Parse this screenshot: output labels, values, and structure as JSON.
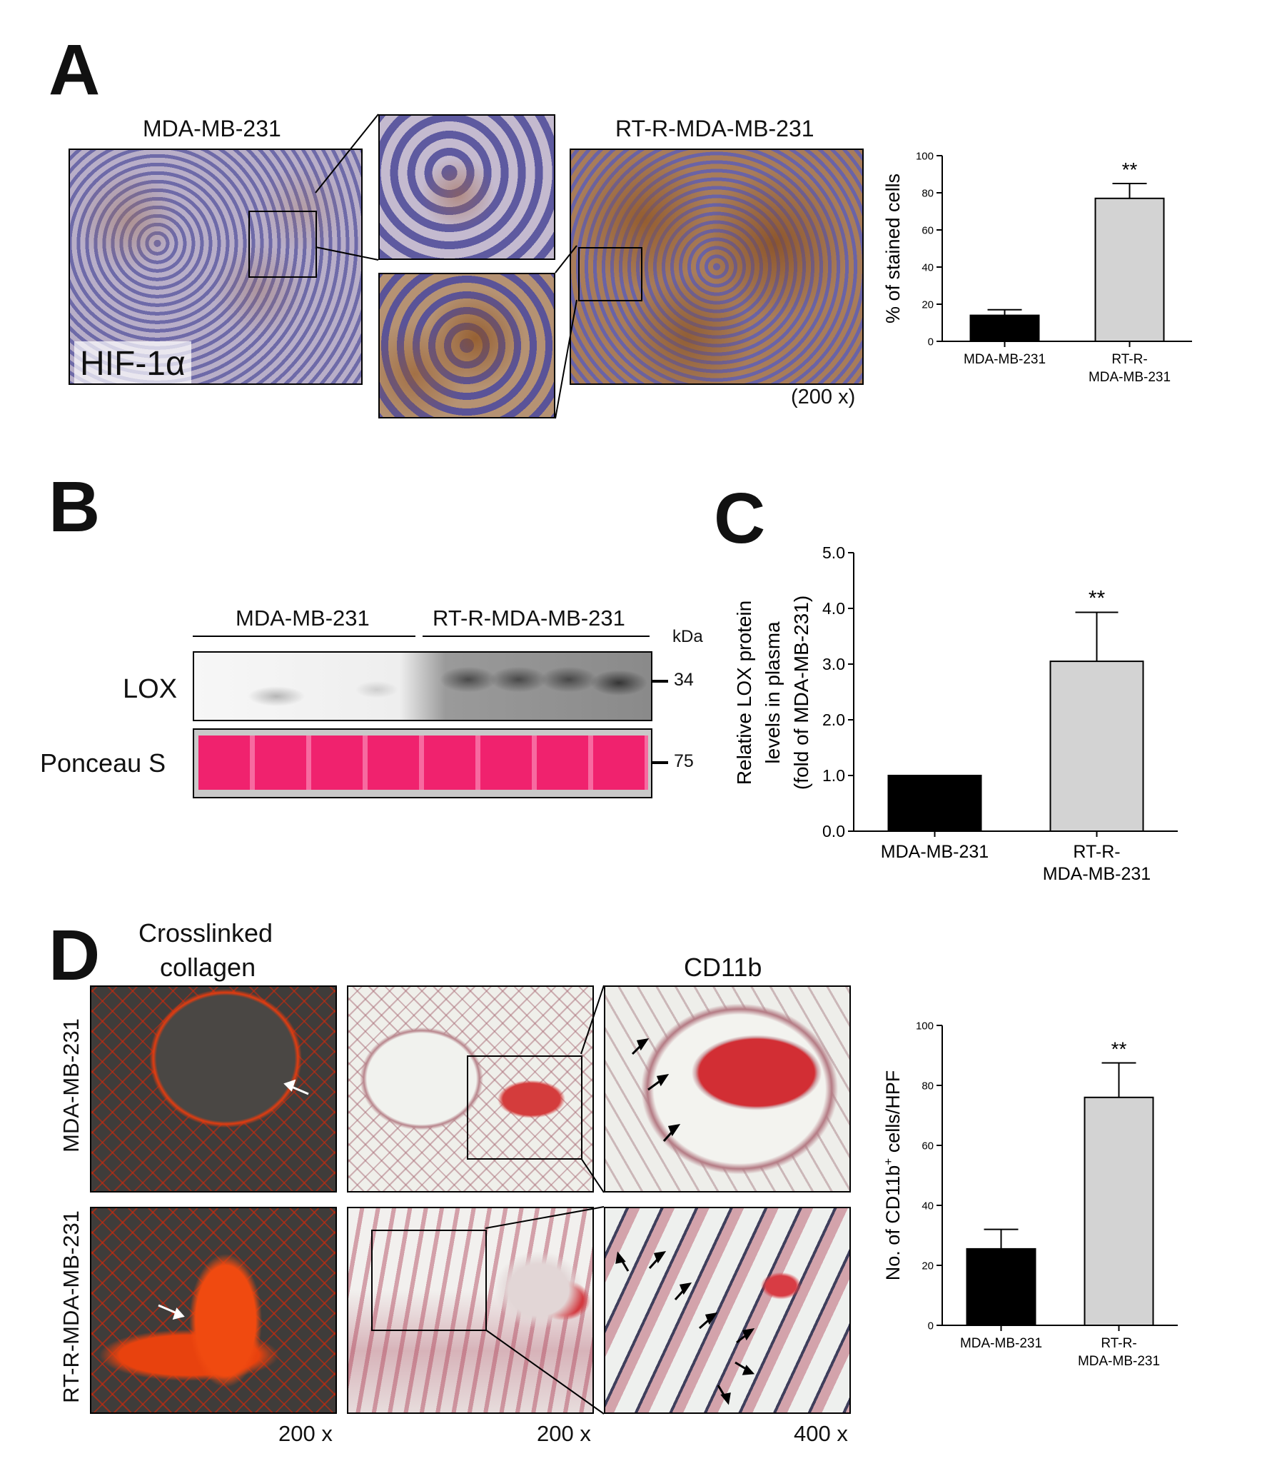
{
  "panel_letters": {
    "a": "A",
    "b": "B",
    "c": "C",
    "d": "D"
  },
  "panel_a": {
    "left_title": "MDA-MB-231",
    "right_title": "RT-R-MDA-MB-231",
    "stain_label": "HIF-1α",
    "magnification": "(200 x)"
  },
  "panel_b": {
    "group1": "MDA-MB-231",
    "group2": "RT-R-MDA-MB-231",
    "kda_label": "kDa",
    "row1_label": "LOX",
    "row2_label": "Ponceau S",
    "marker1": "34",
    "marker2": "75"
  },
  "panel_d": {
    "col1_title_line1": "Crosslinked",
    "col1_title_line2": "collagen",
    "col3_title": "CD11b",
    "row1_label": "MDA-MB-231",
    "row2_label": "RT-R-MDA-MB-231",
    "mag1": "200 x",
    "mag2": "200 x",
    "mag3": "400 x"
  },
  "chart_data": [
    {
      "id": "A",
      "type": "bar",
      "categories": [
        "MDA-MB-231",
        "RT-R-\nMDA-MB-231"
      ],
      "values": [
        14,
        77
      ],
      "errors": [
        3,
        8
      ],
      "significance": [
        "",
        "**"
      ],
      "bar_colors": [
        "#000000",
        "#d3d3d3"
      ],
      "ylabel": "% of stained cells",
      "ylim": [
        0,
        100
      ],
      "yticks": [
        "0",
        "20",
        "40",
        "60",
        "80",
        "100"
      ]
    },
    {
      "id": "C",
      "type": "bar",
      "categories": [
        "MDA-MB-231",
        "RT-R-\nMDA-MB-231"
      ],
      "values": [
        1.0,
        3.05
      ],
      "errors": [
        0,
        0.88
      ],
      "significance": [
        "",
        "**"
      ],
      "bar_colors": [
        "#000000",
        "#d3d3d3"
      ],
      "ylabel_lines": [
        "Relative LOX protein",
        "levels in plasma",
        "(fold of MDA-MB-231)"
      ],
      "ylim": [
        0,
        5
      ],
      "yticks": [
        "0.0",
        "1.0",
        "2.0",
        "3.0",
        "4.0",
        "5.0"
      ]
    },
    {
      "id": "D",
      "type": "bar",
      "categories": [
        "MDA-MB-231",
        "RT-R-\nMDA-MB-231"
      ],
      "values": [
        25.5,
        76
      ],
      "errors": [
        6.5,
        11.5
      ],
      "significance": [
        "",
        "**"
      ],
      "bar_colors": [
        "#000000",
        "#d3d3d3"
      ],
      "ylabel_prefix": "No. of CD11b",
      "ylabel_sup": "+",
      "ylabel_suffix": " cells/HPF",
      "ylim": [
        0,
        100
      ],
      "yticks": [
        "0",
        "20",
        "40",
        "60",
        "80",
        "100"
      ]
    }
  ]
}
